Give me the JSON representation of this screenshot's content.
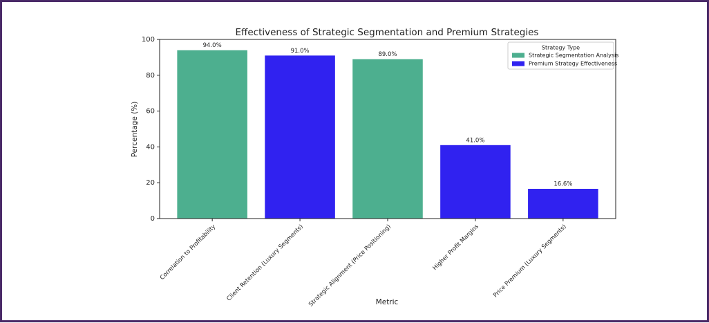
{
  "chart_data": {
    "type": "bar",
    "title": "Effectiveness of Strategic Segmentation and Premium Strategies",
    "x_label": "Metric",
    "y_label": "Percentage (%)",
    "categories": [
      "Correlation to Profitability",
      "Client Retention (Luxury Segments)",
      "Strategic Alignment (Price Positioning)",
      "Higher Profit Margins",
      "Price Premium (Luxury Segments)"
    ],
    "series": [
      {
        "name": "Strategic Segmentation Analysis",
        "color": "#4daf8f",
        "values": [
          94,
          null,
          89,
          null,
          null
        ],
        "value_labels": [
          "94.0%",
          null,
          "89.0%",
          null,
          null
        ]
      },
      {
        "name": "Premium Strategy Effectiveness",
        "color": "#3022f0",
        "values": [
          null,
          91,
          null,
          41,
          16.6
        ],
        "value_labels": [
          null,
          "91.0%",
          null,
          "41.0%",
          "16.6%"
        ]
      }
    ],
    "legend_title": "Strategy Type",
    "legend": "upper right",
    "ylim": [
      0,
      100
    ],
    "yticks": [
      0,
      20,
      40,
      60,
      80,
      100
    ],
    "grid": false
  }
}
